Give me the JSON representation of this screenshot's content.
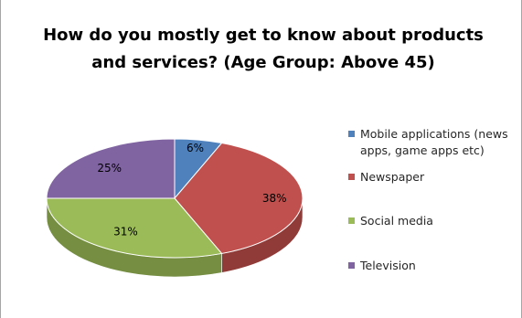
{
  "chart_data": {
    "type": "pie",
    "title_lines": [
      "How do you mostly get to know about products",
      "and services? (Age Group: Above 45)"
    ],
    "categories": [
      "Mobile applications (news apps, game apps etc)",
      "Newspaper",
      "Social media",
      "Television"
    ],
    "legend_lines": [
      [
        "Mobile applications (news",
        "apps, game apps etc)"
      ],
      [
        "Newspaper"
      ],
      [
        "Social media"
      ],
      [
        "Television"
      ]
    ],
    "values": [
      6,
      38,
      31,
      25
    ],
    "labels": [
      "6%",
      "38%",
      "31%",
      "25%"
    ],
    "colors": [
      "#4f81bd",
      "#c0504d",
      "#9bbb59",
      "#8064a2"
    ],
    "side_colors": [
      "#3a6391",
      "#913b39",
      "#758e42",
      "#5f4a7a"
    ],
    "legend_position": "right",
    "style": "3d-tilted"
  }
}
